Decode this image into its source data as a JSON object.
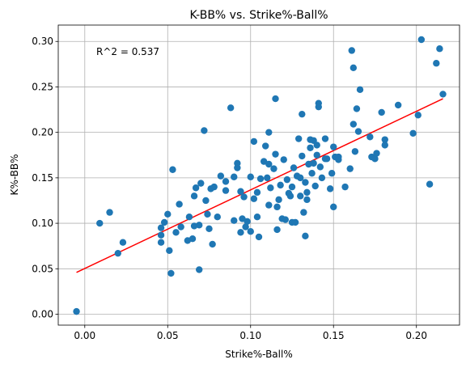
{
  "chart_data": {
    "type": "scatter",
    "title": "K-BB% vs. Strike%-Ball%",
    "xlabel": "Strike%-Ball%",
    "ylabel": "K%-BB%",
    "annotation": "R^2 = 0.537",
    "xlim": [
      -0.016,
      0.226
    ],
    "ylim": [
      -0.012,
      0.318
    ],
    "xticks": [
      0.0,
      0.05,
      0.1,
      0.15,
      0.2
    ],
    "xtick_labels": [
      "0.00",
      "0.05",
      "0.10",
      "0.15",
      "0.20"
    ],
    "yticks": [
      0.0,
      0.05,
      0.1,
      0.15,
      0.2,
      0.25,
      0.3
    ],
    "ytick_labels": [
      "0.00",
      "0.05",
      "0.10",
      "0.15",
      "0.20",
      "0.25",
      "0.30"
    ],
    "grid": true,
    "point_color": "#1f77b4",
    "fit_color": "#ff0000",
    "fit_line": {
      "x": [
        -0.005,
        0.216
      ],
      "y": [
        0.046,
        0.237
      ]
    },
    "points": [
      [
        -0.005,
        0.003
      ],
      [
        0.009,
        0.1
      ],
      [
        0.015,
        0.112
      ],
      [
        0.02,
        0.067
      ],
      [
        0.023,
        0.079
      ],
      [
        0.046,
        0.095
      ],
      [
        0.046,
        0.079
      ],
      [
        0.046,
        0.087
      ],
      [
        0.048,
        0.101
      ],
      [
        0.05,
        0.11
      ],
      [
        0.051,
        0.07
      ],
      [
        0.052,
        0.045
      ],
      [
        0.053,
        0.159
      ],
      [
        0.055,
        0.09
      ],
      [
        0.057,
        0.121
      ],
      [
        0.058,
        0.096
      ],
      [
        0.062,
        0.081
      ],
      [
        0.063,
        0.107
      ],
      [
        0.065,
        0.083
      ],
      [
        0.066,
        0.13
      ],
      [
        0.066,
        0.097
      ],
      [
        0.067,
        0.139
      ],
      [
        0.069,
        0.098
      ],
      [
        0.069,
        0.049
      ],
      [
        0.07,
        0.144
      ],
      [
        0.072,
        0.202
      ],
      [
        0.073,
        0.125
      ],
      [
        0.074,
        0.11
      ],
      [
        0.075,
        0.094
      ],
      [
        0.076,
        0.138
      ],
      [
        0.077,
        0.077
      ],
      [
        0.078,
        0.14
      ],
      [
        0.08,
        0.107
      ],
      [
        0.082,
        0.152
      ],
      [
        0.085,
        0.136
      ],
      [
        0.085,
        0.146
      ],
      [
        0.088,
        0.227
      ],
      [
        0.09,
        0.103
      ],
      [
        0.09,
        0.151
      ],
      [
        0.092,
        0.161
      ],
      [
        0.092,
        0.166
      ],
      [
        0.094,
        0.09
      ],
      [
        0.094,
        0.135
      ],
      [
        0.095,
        0.105
      ],
      [
        0.096,
        0.129
      ],
      [
        0.097,
        0.096
      ],
      [
        0.098,
        0.102
      ],
      [
        0.1,
        0.151
      ],
      [
        0.1,
        0.091
      ],
      [
        0.102,
        0.19
      ],
      [
        0.102,
        0.127
      ],
      [
        0.104,
        0.107
      ],
      [
        0.104,
        0.134
      ],
      [
        0.105,
        0.085
      ],
      [
        0.106,
        0.149
      ],
      [
        0.108,
        0.168
      ],
      [
        0.109,
        0.185
      ],
      [
        0.11,
        0.15
      ],
      [
        0.111,
        0.2
      ],
      [
        0.111,
        0.165
      ],
      [
        0.111,
        0.12
      ],
      [
        0.112,
        0.139
      ],
      [
        0.114,
        0.16
      ],
      [
        0.115,
        0.237
      ],
      [
        0.115,
        0.176
      ],
      [
        0.116,
        0.093
      ],
      [
        0.116,
        0.118
      ],
      [
        0.117,
        0.126
      ],
      [
        0.118,
        0.142
      ],
      [
        0.119,
        0.105
      ],
      [
        0.12,
        0.17
      ],
      [
        0.121,
        0.104
      ],
      [
        0.122,
        0.148
      ],
      [
        0.123,
        0.133
      ],
      [
        0.124,
        0.13
      ],
      [
        0.125,
        0.14
      ],
      [
        0.125,
        0.101
      ],
      [
        0.126,
        0.161
      ],
      [
        0.127,
        0.101
      ],
      [
        0.128,
        0.152
      ],
      [
        0.129,
        0.193
      ],
      [
        0.13,
        0.15
      ],
      [
        0.13,
        0.13
      ],
      [
        0.131,
        0.174
      ],
      [
        0.131,
        0.22
      ],
      [
        0.132,
        0.112
      ],
      [
        0.133,
        0.145
      ],
      [
        0.133,
        0.086
      ],
      [
        0.134,
        0.134
      ],
      [
        0.134,
        0.126
      ],
      [
        0.135,
        0.165
      ],
      [
        0.136,
        0.192
      ],
      [
        0.136,
        0.183
      ],
      [
        0.137,
        0.155
      ],
      [
        0.138,
        0.166
      ],
      [
        0.138,
        0.191
      ],
      [
        0.139,
        0.141
      ],
      [
        0.14,
        0.186
      ],
      [
        0.14,
        0.175
      ],
      [
        0.141,
        0.232
      ],
      [
        0.141,
        0.228
      ],
      [
        0.142,
        0.162
      ],
      [
        0.143,
        0.15
      ],
      [
        0.145,
        0.171
      ],
      [
        0.145,
        0.193
      ],
      [
        0.146,
        0.171
      ],
      [
        0.148,
        0.138
      ],
      [
        0.149,
        0.155
      ],
      [
        0.15,
        0.184
      ],
      [
        0.15,
        0.118
      ],
      [
        0.151,
        0.173
      ],
      [
        0.153,
        0.173
      ],
      [
        0.153,
        0.17
      ],
      [
        0.157,
        0.14
      ],
      [
        0.16,
        0.16
      ],
      [
        0.161,
        0.29
      ],
      [
        0.162,
        0.271
      ],
      [
        0.162,
        0.209
      ],
      [
        0.163,
        0.179
      ],
      [
        0.164,
        0.226
      ],
      [
        0.165,
        0.201
      ],
      [
        0.166,
        0.247
      ],
      [
        0.172,
        0.195
      ],
      [
        0.173,
        0.173
      ],
      [
        0.175,
        0.171
      ],
      [
        0.176,
        0.177
      ],
      [
        0.179,
        0.222
      ],
      [
        0.181,
        0.192
      ],
      [
        0.181,
        0.186
      ],
      [
        0.189,
        0.23
      ],
      [
        0.198,
        0.199
      ],
      [
        0.201,
        0.219
      ],
      [
        0.203,
        0.302
      ],
      [
        0.208,
        0.143
      ],
      [
        0.212,
        0.276
      ],
      [
        0.214,
        0.292
      ],
      [
        0.216,
        0.242
      ]
    ]
  }
}
